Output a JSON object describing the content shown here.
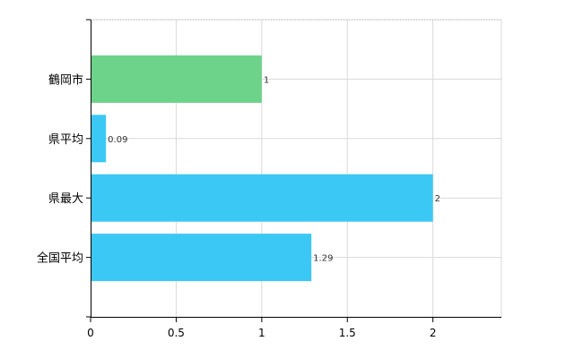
{
  "chart_data": {
    "type": "bar",
    "orientation": "horizontal",
    "categories": [
      "鶴岡市",
      "県平均",
      "県最大",
      "全国平均"
    ],
    "values": [
      1,
      0.09,
      2,
      1.29
    ],
    "value_labels": [
      "1",
      "0.09",
      "2",
      "1.29"
    ],
    "bar_colors": [
      "#6dd38a",
      "#3cc8f5",
      "#3cc8f5",
      "#3cc8f5"
    ],
    "xlim": [
      0,
      2.4
    ],
    "x_ticks": [
      0,
      0.5,
      1,
      1.5,
      2
    ],
    "x_tick_labels": [
      "0",
      "0.5",
      "1",
      "1.5",
      "2"
    ],
    "grid": true,
    "title": "",
    "xlabel": "",
    "ylabel": ""
  }
}
